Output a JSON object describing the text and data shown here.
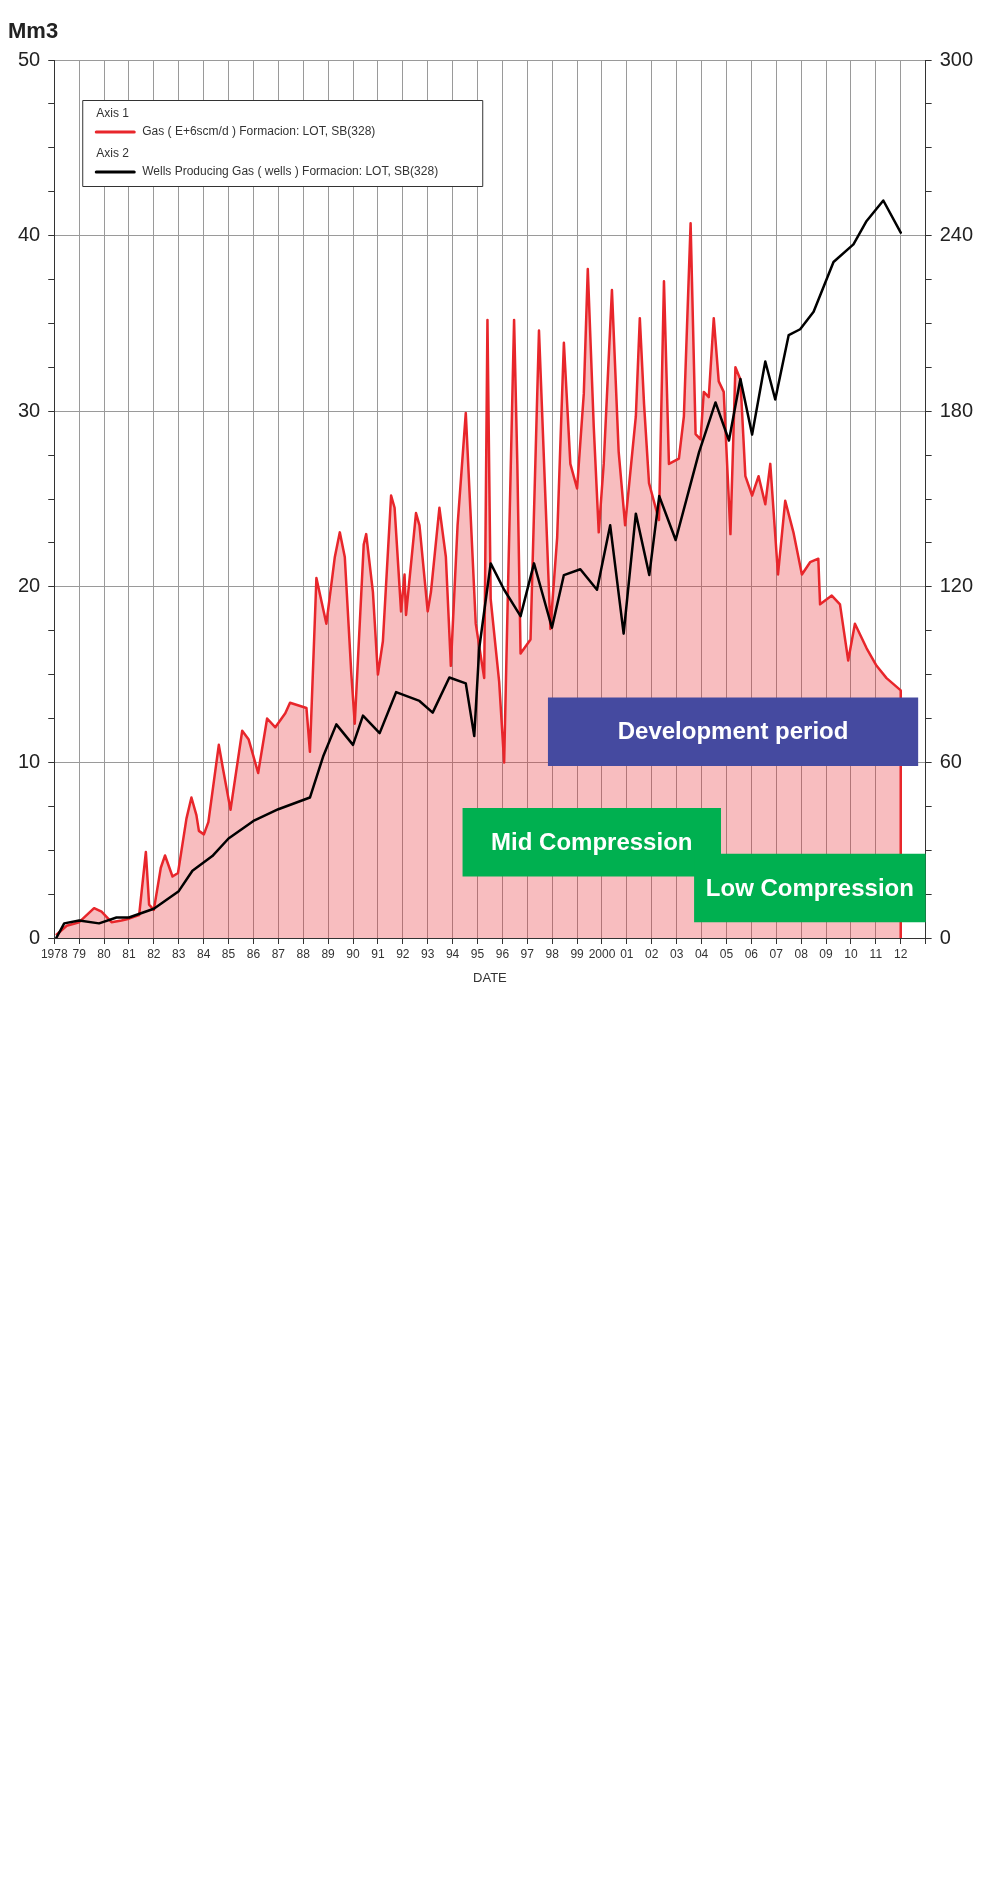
{
  "chart_data": {
    "type": "line",
    "xlabel": "DATE",
    "ylabel": "Mm3",
    "xlim": [
      1978,
      2013
    ],
    "ylim": [
      0,
      50
    ],
    "y2lim": [
      0,
      300
    ],
    "grid": true,
    "legend": "top left",
    "annotations": [
      "Axis 1",
      "Axis 2"
    ],
    "xticks": [
      1978,
      {
        "value": 1979,
        "label": "79"
      },
      {
        "value": 1980,
        "label": "80"
      },
      {
        "value": 1981,
        "label": "81"
      },
      {
        "value": 1982,
        "label": "82"
      },
      {
        "value": 1983,
        "label": "83"
      },
      {
        "value": 1984,
        "label": "84"
      },
      {
        "value": 1985,
        "label": "85"
      },
      {
        "value": 1986,
        "label": "86"
      },
      {
        "value": 1987,
        "label": "87"
      },
      {
        "value": 1988,
        "label": "88"
      },
      {
        "value": 1989,
        "label": "89"
      },
      {
        "value": 1990,
        "label": "90"
      },
      {
        "value": 1991,
        "label": "91"
      },
      {
        "value": 1992,
        "label": "92"
      },
      {
        "value": 1993,
        "label": "93"
      },
      {
        "value": 1994,
        "label": "94"
      },
      {
        "value": 1995,
        "label": "95"
      },
      {
        "value": 1996,
        "label": "96"
      },
      {
        "value": 1997,
        "label": "97"
      },
      {
        "value": 1998,
        "label": "98"
      },
      {
        "value": 1999,
        "label": "99"
      },
      2000,
      {
        "value": 2001,
        "label": "01"
      },
      {
        "value": 2002,
        "label": "02"
      },
      {
        "value": 2003,
        "label": "03"
      },
      {
        "value": 2004,
        "label": "04"
      },
      {
        "value": 2005,
        "label": "05"
      },
      {
        "value": 2006,
        "label": "06"
      },
      {
        "value": 2007,
        "label": "07"
      },
      {
        "value": 2008,
        "label": "08"
      },
      {
        "value": 2009,
        "label": "09"
      },
      {
        "value": 2010,
        "label": "10"
      },
      {
        "value": 2011,
        "label": "11"
      },
      {
        "value": 2012,
        "label": "12"
      },
      {
        "value": 2013,
        "label": null
      }
    ],
    "yticks": [
      0,
      {
        "value": 2.5,
        "label": null
      },
      {
        "value": 5,
        "label": null
      },
      {
        "value": 7.5,
        "label": null
      },
      10,
      {
        "value": 12.5,
        "label": null
      },
      {
        "value": 15,
        "label": null
      },
      {
        "value": 17.5,
        "label": null
      },
      20,
      {
        "value": 22.5,
        "label": null
      },
      {
        "value": 25,
        "label": null
      },
      {
        "value": 27.5,
        "label": null
      },
      30,
      {
        "value": 32.5,
        "label": null
      },
      {
        "value": 35,
        "label": null
      },
      {
        "value": 37.5,
        "label": null
      },
      40,
      {
        "value": 42.5,
        "label": null
      },
      {
        "value": 45,
        "label": null
      },
      {
        "value": 47.5,
        "label": null
      },
      50
    ],
    "y2ticks": [
      0,
      {
        "value": 15,
        "label": null
      },
      {
        "value": 30,
        "label": null
      },
      {
        "value": 45,
        "label": null
      },
      60,
      {
        "value": 75,
        "label": null
      },
      {
        "value": 90,
        "label": null
      },
      {
        "value": 105,
        "label": null
      },
      120,
      {
        "value": 135,
        "label": null
      },
      {
        "value": 150,
        "label": null
      },
      {
        "value": 165,
        "label": null
      },
      180,
      {
        "value": 195,
        "label": null
      },
      {
        "value": 210,
        "label": null
      },
      {
        "value": 225,
        "label": null
      },
      240,
      {
        "value": 255,
        "label": null
      },
      {
        "value": 270,
        "label": null
      },
      {
        "value": 285,
        "label": null
      },
      300
    ],
    "bands": [
      {
        "axis": "x",
        "from": 1997.83,
        "to": 2012.7,
        "label": "Development period",
        "color": "#454aa0"
      },
      {
        "axis": "x",
        "from": 1994.4,
        "to": 2004.78,
        "label": "Mid Compression",
        "color": "#00b050"
      },
      {
        "axis": "x",
        "from": 2003.7,
        "to": 2013,
        "label": "Low Compression",
        "color": "#00b050"
      }
    ],
    "series": [
      {
        "name": "Gas ( E+6scm/d ) Formacion: LOT, SB(328)",
        "type": "area",
        "color": "#e8262b",
        "x": [
          1978.1,
          1978.5,
          1979.0,
          1979.6,
          1979.9,
          1980.3,
          1980.7,
          1981.0,
          1981.41,
          1981.68,
          1981.81,
          1982.0,
          1982.28,
          1982.45,
          1982.75,
          1982.97,
          1983.31,
          1983.51,
          1983.71,
          1983.81,
          1984.01,
          1984.19,
          1984.61,
          1984.77,
          1985.08,
          1985.55,
          1985.81,
          1986.19,
          1986.55,
          1986.88,
          1987.28,
          1987.47,
          1988.13,
          1988.27,
          1988.53,
          1988.93,
          1989.27,
          1989.47,
          1989.67,
          1989.93,
          1990.07,
          1990.43,
          1990.53,
          1990.8,
          1991.0,
          1991.2,
          1991.53,
          1991.67,
          1991.93,
          1992.07,
          1992.13,
          1992.53,
          1992.67,
          1993.0,
          1993.13,
          1993.47,
          1993.73,
          1993.93,
          1994.2,
          1994.53,
          1994.93,
          1995.27,
          1995.4,
          1995.53,
          1995.87,
          1996.07,
          1996.2,
          1996.47,
          1996.6,
          1996.73,
          1997.13,
          1997.47,
          1997.93,
          1998.2,
          1998.47,
          1998.73,
          1999.0,
          1999.27,
          1999.43,
          1999.67,
          1999.87,
          2000.07,
          2000.4,
          2000.67,
          2000.93,
          2001.36,
          2001.52,
          2001.69,
          2001.89,
          2002.29,
          2002.49,
          2002.69,
          2003.09,
          2003.29,
          2003.56,
          2003.76,
          2003.96,
          2004.09,
          2004.29,
          2004.49,
          2004.69,
          2004.89,
          2005.16,
          2005.36,
          2005.56,
          2005.76,
          2006.03,
          2006.29,
          2006.56,
          2006.76,
          2007.07,
          2007.36,
          2007.69,
          2008.03,
          2008.36,
          2008.69,
          2008.76,
          2009.23,
          2009.56,
          2009.89,
          2010.16,
          2010.63,
          2011.03,
          2011.43,
          2012.0,
          2012.0
        ],
        "values": [
          0.2,
          0.7,
          0.9,
          1.7,
          1.5,
          0.9,
          1.0,
          1.1,
          1.3,
          4.9,
          1.9,
          1.6,
          4.0,
          4.7,
          3.5,
          3.7,
          6.8,
          8.0,
          7.0,
          6.1,
          5.9,
          6.6,
          11.0,
          9.7,
          7.3,
          11.8,
          11.3,
          9.4,
          12.5,
          12.0,
          12.8,
          13.4,
          13.1,
          10.6,
          20.5,
          17.9,
          21.7,
          23.1,
          21.7,
          15.1,
          12.2,
          22.4,
          23.0,
          19.7,
          15.0,
          16.9,
          25.2,
          24.5,
          18.6,
          20.7,
          18.4,
          24.2,
          23.5,
          18.6,
          19.7,
          24.5,
          21.7,
          15.5,
          23.5,
          29.9,
          17.9,
          14.8,
          35.2,
          19.3,
          14.6,
          10.0,
          18.3,
          35.2,
          27.0,
          16.2,
          17.0,
          34.6,
          17.6,
          22.8,
          33.9,
          27.0,
          25.6,
          31.0,
          38.1,
          29.1,
          23.1,
          27.0,
          36.9,
          27.7,
          23.5,
          29.7,
          35.3,
          30.4,
          25.9,
          23.8,
          37.4,
          27.0,
          27.3,
          29.7,
          40.7,
          28.7,
          28.4,
          31.1,
          30.8,
          35.3,
          31.7,
          31.1,
          23.0,
          32.5,
          31.8,
          26.3,
          25.2,
          26.3,
          24.7,
          27.0,
          20.7,
          24.9,
          23.1,
          20.7,
          21.4,
          21.6,
          19.0,
          19.5,
          19.0,
          15.8,
          17.9,
          16.5,
          15.5,
          14.8,
          14.1,
          0
        ]
      },
      {
        "name": "Wells Producing Gas ( wells ) Formacion: LOT, SB(328)",
        "type": "line",
        "axis": "y2",
        "color": "#000000",
        "x": [
          1978.08,
          1978.4,
          1979.0,
          1979.8,
          1980.5,
          1981.0,
          1982.0,
          1983.0,
          1983.55,
          1984.35,
          1985.0,
          1986.0,
          1987.0,
          1988.27,
          1988.8,
          1989.33,
          1990.0,
          1990.4,
          1991.07,
          1991.73,
          1992.67,
          1993.2,
          1993.87,
          1994.53,
          1994.87,
          1995.07,
          1995.53,
          1996.07,
          1996.73,
          1997.27,
          1997.99,
          1998.47,
          1999.13,
          1999.8,
          2000.33,
          2000.87,
          2001.36,
          2001.9,
          2002.3,
          2002.96,
          2003.9,
          2004.56,
          2005.1,
          2005.56,
          2006.03,
          2006.56,
          2006.96,
          2007.5,
          2007.96,
          2008.5,
          2009.3,
          2010.1,
          2010.63,
          2011.3,
          2012.0
        ],
        "values": [
          0,
          5,
          6,
          5,
          7,
          7,
          10,
          16,
          23,
          28,
          34,
          40,
          44,
          48,
          62,
          73,
          66,
          76,
          70,
          84,
          81,
          77,
          89,
          87,
          69,
          99,
          128,
          119,
          110,
          128,
          106,
          124,
          126,
          119,
          141,
          104,
          145,
          124,
          151,
          136,
          166,
          183,
          170,
          191,
          172,
          197,
          184,
          206,
          208,
          214,
          231,
          237,
          245,
          252,
          241
        ]
      }
    ]
  }
}
